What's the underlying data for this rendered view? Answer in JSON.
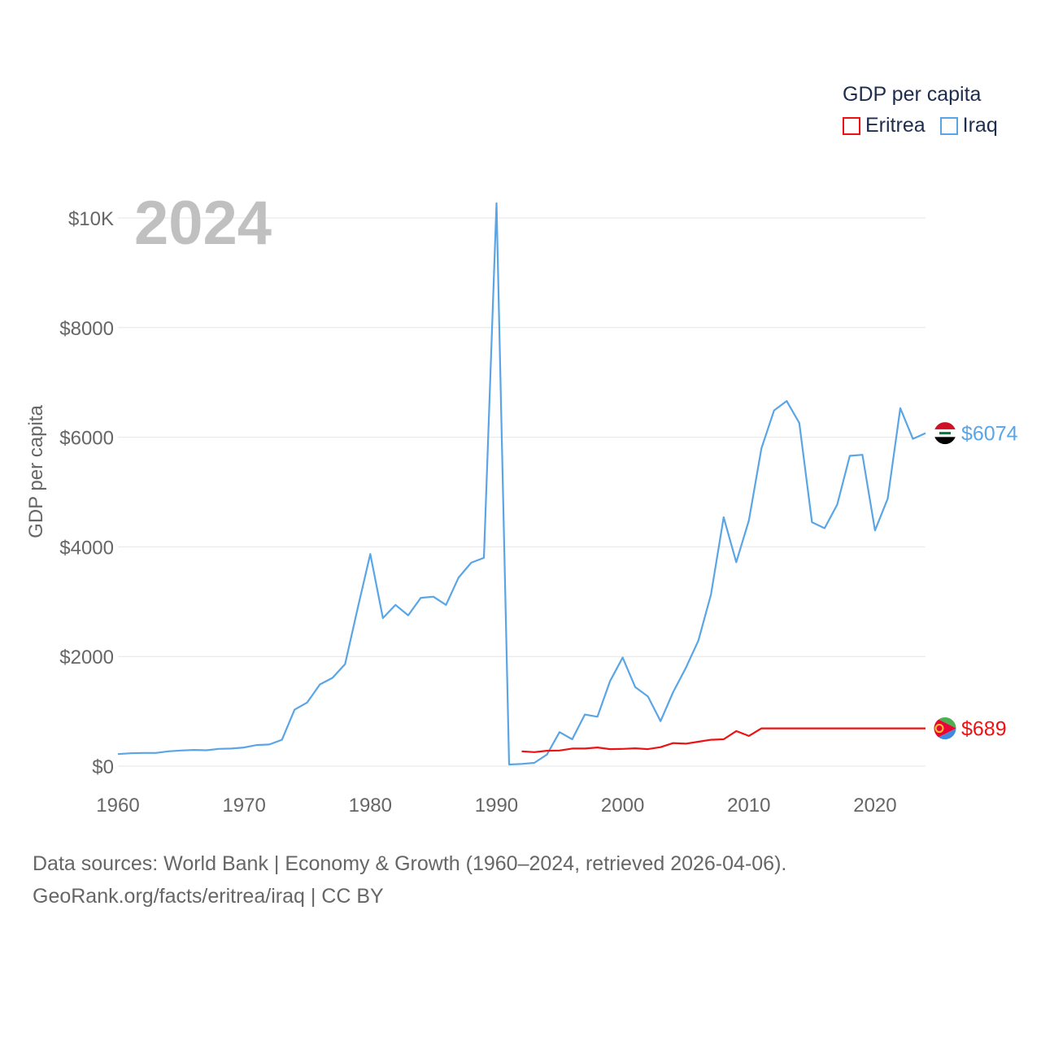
{
  "legend": {
    "title": "GDP per capita",
    "items": [
      {
        "name": "Eritrea",
        "color": "#ee1111"
      },
      {
        "name": "Iraq",
        "color": "#5aa5e6"
      }
    ]
  },
  "footer": {
    "line1": "Data sources: World Bank | Economy & Growth (1960–2024, retrieved 2026-04-06).",
    "line2": "GeoRank.org/facts/eritrea/iraq | CC BY"
  },
  "chart_data": {
    "type": "line",
    "title": "GDP per capita",
    "year_label": "2024",
    "xlabel": "",
    "ylabel": "GDP per capita",
    "xlim": [
      1960,
      2024
    ],
    "ylim": [
      0,
      10000
    ],
    "xticks": [
      1960,
      1970,
      1980,
      1990,
      2000,
      2010,
      2020
    ],
    "xtick_labels": [
      "1960",
      "1970",
      "1980",
      "1990",
      "2000",
      "2010",
      "2020"
    ],
    "yticks": [
      0,
      2000,
      4000,
      6000,
      8000,
      10000
    ],
    "ytick_labels": [
      "$0",
      "$2000",
      "$4000",
      "$6000",
      "$8000",
      "$10K"
    ],
    "grid": true,
    "legend_position": "top-right",
    "series": [
      {
        "name": "Iraq",
        "color": "#5aa5e6",
        "end_label": "$6074",
        "x": [
          1960,
          1961,
          1962,
          1963,
          1964,
          1965,
          1966,
          1967,
          1968,
          1969,
          1970,
          1971,
          1972,
          1973,
          1974,
          1975,
          1976,
          1977,
          1978,
          1979,
          1980,
          1981,
          1982,
          1983,
          1984,
          1985,
          1986,
          1987,
          1988,
          1989,
          1990,
          1991,
          1992,
          1993,
          1994,
          1995,
          1996,
          1997,
          1998,
          1999,
          2000,
          2001,
          2002,
          2003,
          2004,
          2005,
          2006,
          2007,
          2008,
          2009,
          2010,
          2011,
          2012,
          2013,
          2014,
          2015,
          2016,
          2017,
          2018,
          2019,
          2020,
          2021,
          2022,
          2023,
          2024
        ],
        "values": [
          220,
          235,
          240,
          240,
          270,
          285,
          295,
          290,
          315,
          320,
          340,
          385,
          395,
          480,
          1030,
          1160,
          1490,
          1610,
          1860,
          2880,
          3870,
          2700,
          2940,
          2750,
          3070,
          3090,
          2940,
          3440,
          3710,
          3800,
          10270,
          30,
          40,
          60,
          210,
          620,
          490,
          940,
          900,
          1550,
          1980,
          1440,
          1270,
          820,
          1350,
          1790,
          2290,
          3130,
          4540,
          3720,
          4480,
          5800,
          6490,
          6660,
          6260,
          4450,
          4340,
          4770,
          5660,
          5680,
          4300,
          4880,
          6530,
          5970,
          6074
        ]
      },
      {
        "name": "Eritrea",
        "color": "#ee1111",
        "end_label": "$689",
        "x": [
          1992,
          1993,
          1994,
          1995,
          1996,
          1997,
          1998,
          1999,
          2000,
          2001,
          2002,
          2003,
          2004,
          2005,
          2006,
          2007,
          2008,
          2009,
          2010,
          2011,
          2024
        ],
        "values": [
          270,
          255,
          280,
          285,
          320,
          320,
          340,
          310,
          315,
          325,
          310,
          345,
          420,
          410,
          445,
          480,
          490,
          640,
          550,
          689,
          689
        ]
      }
    ]
  }
}
